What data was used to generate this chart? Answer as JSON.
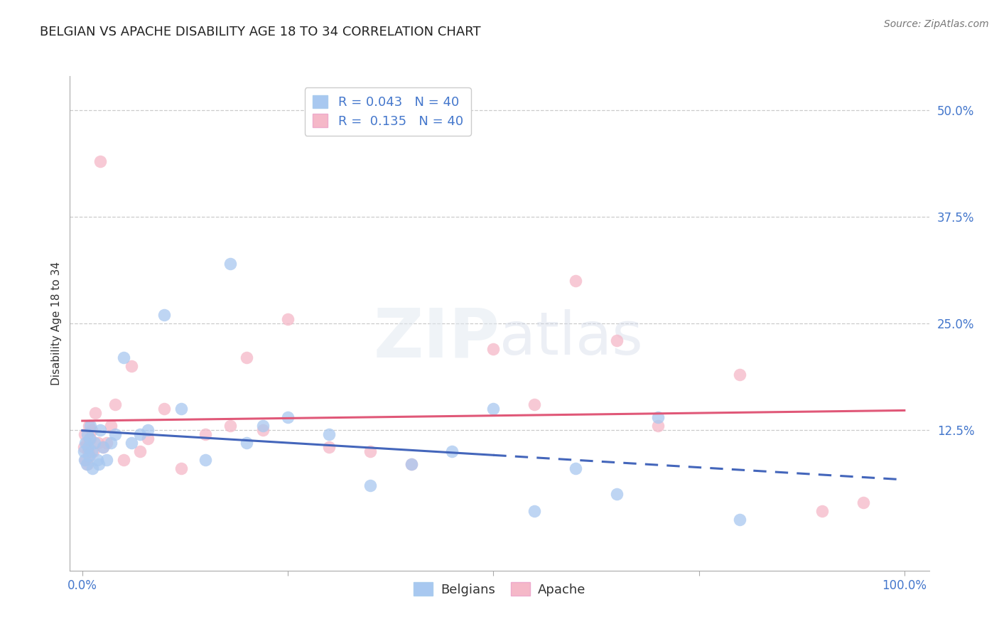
{
  "title": "BELGIAN VS APACHE DISABILITY AGE 18 TO 34 CORRELATION CHART",
  "source": "Source: ZipAtlas.com",
  "ylabel": "Disability Age 18 to 34",
  "yticks": [
    0,
    12.5,
    25.0,
    37.5,
    50.0
  ],
  "ytick_labels": [
    "",
    "12.5%",
    "25.0%",
    "37.5%",
    "50.0%"
  ],
  "xtick_labels": [
    "0.0%",
    "",
    "",
    "",
    "100.0%"
  ],
  "belgian_R": 0.043,
  "apache_R": 0.135,
  "N": 40,
  "belgian_color": "#a8c8f0",
  "apache_color": "#f5b8c8",
  "belgian_line_color": "#4466bb",
  "apache_line_color": "#e05878",
  "background_color": "#ffffff",
  "legend_label_belgian": "Belgians",
  "legend_label_apache": "Apache",
  "belgians_x": [
    0.2,
    0.3,
    0.4,
    0.5,
    0.6,
    0.7,
    0.8,
    0.9,
    1.0,
    1.1,
    1.2,
    1.5,
    1.8,
    2.0,
    2.2,
    2.5,
    3.0,
    3.5,
    4.0,
    5.0,
    6.0,
    7.0,
    8.0,
    10.0,
    12.0,
    15.0,
    18.0,
    20.0,
    22.0,
    25.0,
    30.0,
    35.0,
    40.0,
    45.0,
    50.0,
    55.0,
    60.0,
    65.0,
    70.0,
    80.0
  ],
  "belgians_y": [
    10.0,
    9.0,
    11.0,
    8.5,
    12.0,
    10.5,
    9.5,
    11.5,
    13.0,
    10.0,
    8.0,
    11.0,
    9.0,
    8.5,
    12.5,
    10.5,
    9.0,
    11.0,
    12.0,
    21.0,
    11.0,
    12.0,
    12.5,
    26.0,
    15.0,
    9.0,
    32.0,
    11.0,
    13.0,
    14.0,
    12.0,
    6.0,
    8.5,
    10.0,
    15.0,
    3.0,
    8.0,
    5.0,
    14.0,
    2.0
  ],
  "apache_x": [
    0.2,
    0.3,
    0.4,
    0.5,
    0.6,
    0.7,
    0.8,
    0.9,
    1.0,
    1.1,
    1.3,
    1.6,
    1.9,
    2.2,
    2.5,
    3.0,
    3.5,
    4.0,
    5.0,
    6.0,
    7.0,
    8.0,
    10.0,
    12.0,
    15.0,
    18.0,
    20.0,
    22.0,
    25.0,
    30.0,
    35.0,
    40.0,
    50.0,
    55.0,
    60.0,
    65.0,
    70.0,
    80.0,
    90.0,
    95.0
  ],
  "apache_y": [
    10.5,
    12.0,
    9.0,
    11.0,
    8.5,
    10.0,
    13.0,
    9.5,
    11.5,
    12.5,
    10.0,
    14.5,
    11.0,
    44.0,
    10.5,
    11.0,
    13.0,
    15.5,
    9.0,
    20.0,
    10.0,
    11.5,
    15.0,
    8.0,
    12.0,
    13.0,
    21.0,
    12.5,
    25.5,
    10.5,
    10.0,
    8.5,
    22.0,
    15.5,
    30.0,
    23.0,
    13.0,
    19.0,
    3.0,
    4.0
  ],
  "xlim_min": -1.5,
  "xlim_max": 103,
  "ylim_min": -4,
  "ylim_max": 54
}
